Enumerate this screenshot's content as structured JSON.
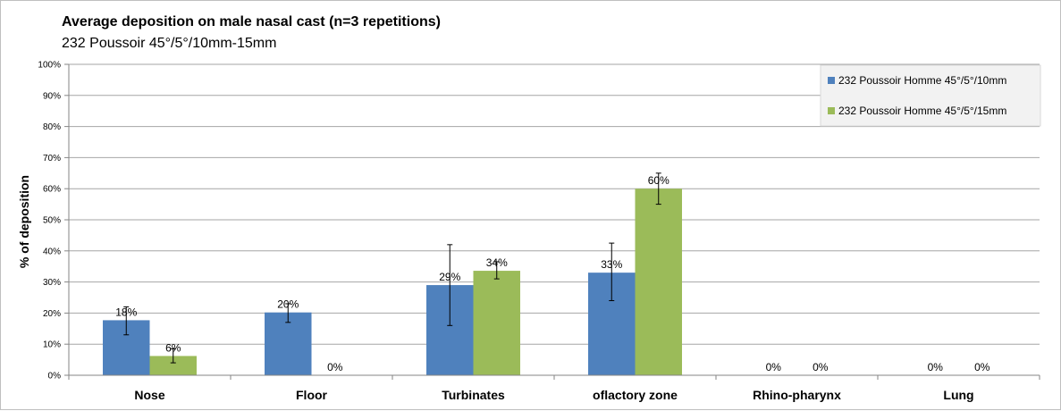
{
  "chart_data": {
    "type": "bar",
    "title": "Average deposition on male nasal cast (n=3 repetitions)",
    "subtitle": "232 Poussoir 45°/5°/10mm-15mm",
    "xlabel": "",
    "ylabel": "% of deposition",
    "ylim": [
      0,
      100
    ],
    "yticks": [
      "0%",
      "10%",
      "20%",
      "30%",
      "40%",
      "50%",
      "60%",
      "70%",
      "80%",
      "90%",
      "100%"
    ],
    "grid": true,
    "legend_position": "top-right",
    "categories": [
      "Nose",
      "Floor",
      "Turbinates",
      "oflactory zone",
      "Rhino-pharynx",
      "Lung"
    ],
    "series": [
      {
        "name": "232 Poussoir Homme 45°/5°/10mm",
        "color": "#4f81bd",
        "values": [
          17.7,
          20.2,
          29,
          33,
          0,
          0
        ],
        "labels": [
          "18%",
          "20%",
          "29%",
          "33%",
          "0%",
          "0%"
        ],
        "error_low": [
          13,
          17,
          16,
          24,
          0,
          0
        ],
        "error_high": [
          22,
          23,
          42,
          42.5,
          0,
          0
        ]
      },
      {
        "name": "232 Poussoir Homme 45°/5°/15mm",
        "color": "#9bbb59",
        "values": [
          6.2,
          0,
          33.6,
          60,
          0,
          0
        ],
        "labels": [
          "6%",
          "0%",
          "34%",
          "60%",
          "0%",
          "0%"
        ],
        "error_low": [
          4,
          0,
          31,
          55,
          0,
          0
        ],
        "error_high": [
          8.5,
          0,
          36.5,
          65,
          0,
          0
        ]
      }
    ]
  }
}
